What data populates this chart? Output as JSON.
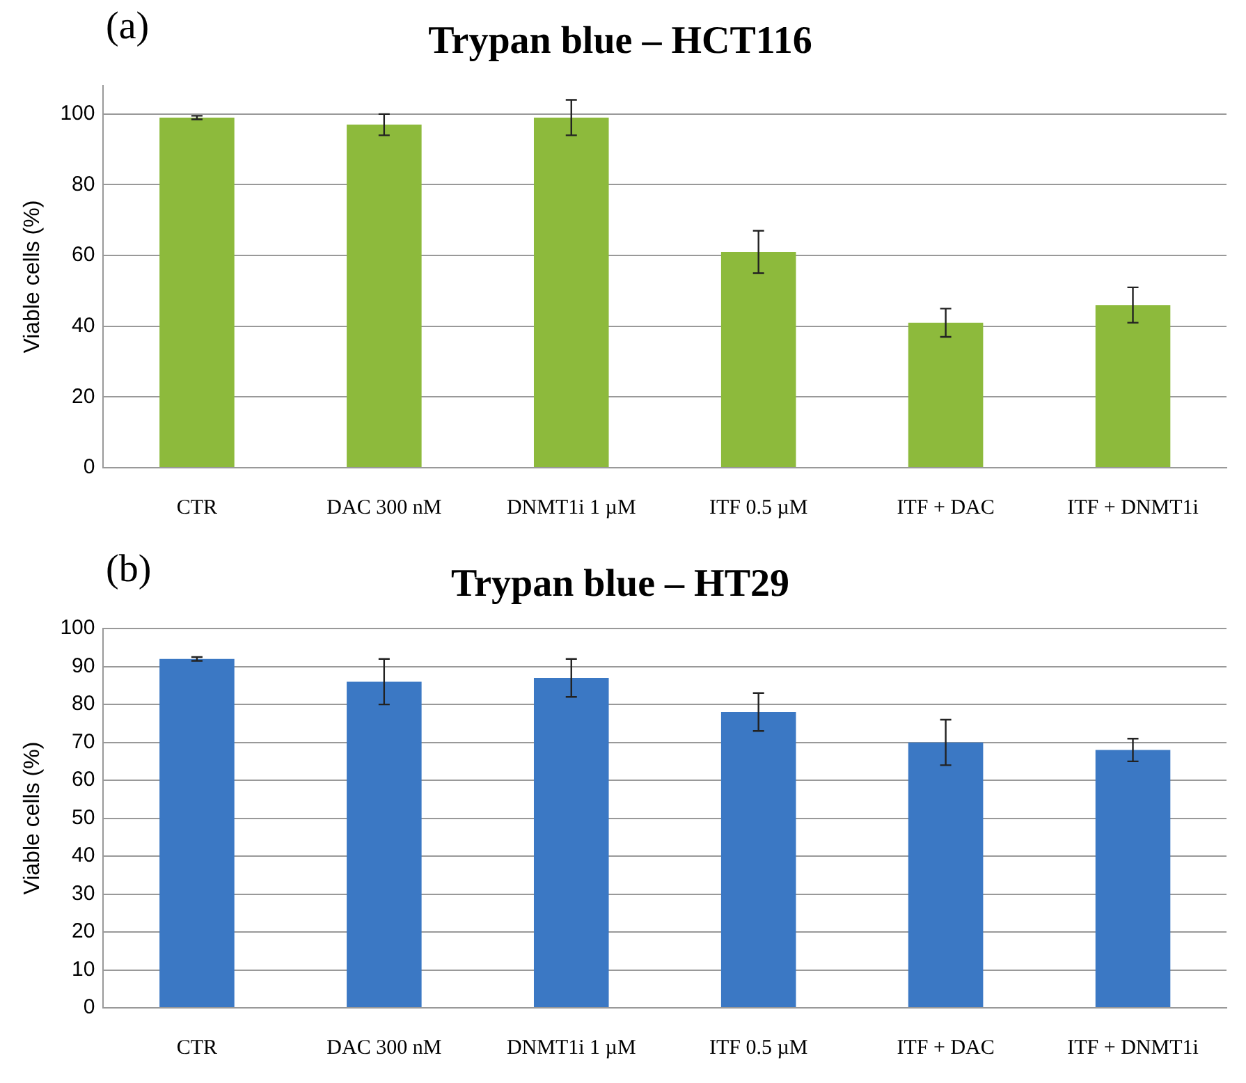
{
  "chart_data": [
    {
      "type": "bar",
      "title": "Trypan blue – HCT116",
      "annotations": [
        "(a)"
      ],
      "ylabel": "Viable cells (%)",
      "categories": [
        "CTR",
        "DAC 300 nM",
        "DNMT1i 1 µM",
        "ITF 0.5 µM",
        "ITF + DAC",
        "ITF + DNMT1i"
      ],
      "values": [
        99,
        97,
        99,
        61,
        41,
        46
      ],
      "errors": [
        0.5,
        3,
        5,
        6,
        4,
        5
      ],
      "color": "#8dba3c",
      "ylim": [
        0,
        108
      ],
      "yticks": [
        0,
        20,
        40,
        60,
        80,
        100
      ],
      "grid": "y",
      "legend": false
    },
    {
      "type": "bar",
      "title": "Trypan blue – HT29",
      "annotations": [
        "(b)"
      ],
      "ylabel": "Viable cells (%)",
      "categories": [
        "CTR",
        "DAC 300 nM",
        "DNMT1i 1 µM",
        "ITF 0.5 µM",
        "ITF + DAC",
        "ITF + DNMT1i"
      ],
      "values": [
        92,
        86,
        87,
        78,
        70,
        68
      ],
      "errors": [
        0.5,
        6,
        5,
        5,
        6,
        3
      ],
      "color": "#3b78c4",
      "ylim": [
        0,
        100
      ],
      "yticks": [
        0,
        10,
        20,
        30,
        40,
        50,
        60,
        70,
        80,
        90,
        100
      ],
      "grid": "y",
      "legend": false
    }
  ]
}
